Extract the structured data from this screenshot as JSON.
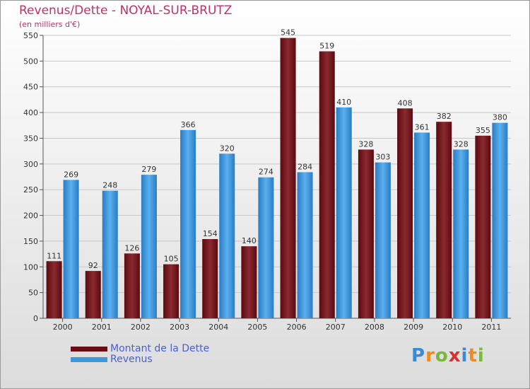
{
  "title": "Revenus/Dette - NOYAL-SUR-BRUTZ",
  "subtitle": "(en milliers d'€)",
  "brand": {
    "letters": [
      "P",
      "r",
      "o",
      "x",
      "i",
      "t",
      "i"
    ],
    "colors": [
      "#3a8ad8",
      "#f08a1a",
      "#7ab83a",
      "#d8302a",
      "#3a8ad8",
      "#f08a1a",
      "#7ab83a"
    ]
  },
  "colors": {
    "dette": "#6b0c14",
    "revenus": "#3a98e0",
    "grid": "#c8c8c8",
    "axis_text": "#333333"
  },
  "legend": [
    {
      "label": "Montant de la Dette",
      "color": "#6b0c14"
    },
    {
      "label": "Revenus",
      "color": "#3a98e0"
    }
  ],
  "chart_data": {
    "type": "bar",
    "title": "Revenus/Dette - NOYAL-SUR-BRUTZ",
    "ylabel": "(en milliers d'€)",
    "xlabel": "",
    "ylim": [
      0,
      550
    ],
    "yticks": [
      0,
      50,
      100,
      150,
      200,
      250,
      300,
      350,
      400,
      450,
      500,
      550
    ],
    "grid": true,
    "categories": [
      "2000",
      "2001",
      "2002",
      "2003",
      "2004",
      "2005",
      "2006",
      "2007",
      "2008",
      "2009",
      "2010",
      "2011"
    ],
    "series": [
      {
        "name": "Montant de la Dette",
        "values": [
          111,
          92,
          126,
          105,
          154,
          140,
          545,
          519,
          328,
          408,
          382,
          355
        ]
      },
      {
        "name": "Revenus",
        "values": [
          269,
          248,
          279,
          366,
          320,
          274,
          284,
          410,
          303,
          361,
          328,
          380
        ]
      }
    ],
    "legend_position": "bottom-left"
  }
}
